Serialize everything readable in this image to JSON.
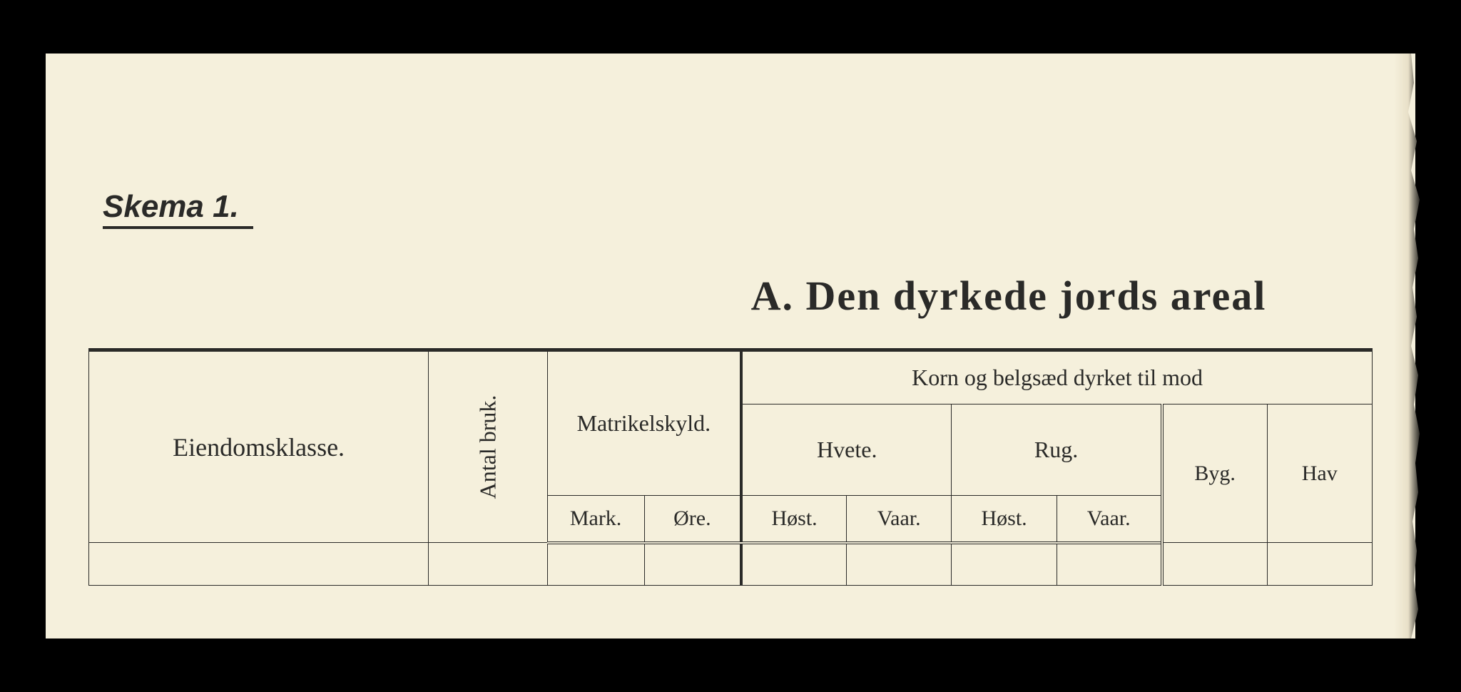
{
  "document": {
    "background_color": "#f5f0dc",
    "text_color": "#2a2a28",
    "page_bg": "#000000"
  },
  "header": {
    "skema_label": "Skema 1.",
    "main_title": "A.   Den dyrkede jords areal"
  },
  "table": {
    "type": "table",
    "columns": {
      "eiendom": "Eiendomsklasse.",
      "antal_bruk": "Antal bruk.",
      "matrikelskyld": {
        "label": "Matrikelskyld.",
        "sub": [
          "Mark.",
          "Øre."
        ]
      },
      "korn_header": "Korn og belgsæd dyrket til mod",
      "hvete": {
        "label": "Hvete.",
        "sub": [
          "Høst.",
          "Vaar."
        ]
      },
      "rug": {
        "label": "Rug.",
        "sub": [
          "Høst.",
          "Vaar."
        ]
      },
      "byg": "Byg.",
      "hav": "Hav"
    },
    "border_color": "#2a2a28",
    "header_fontsize": 32,
    "cell_fontsize": 30
  }
}
